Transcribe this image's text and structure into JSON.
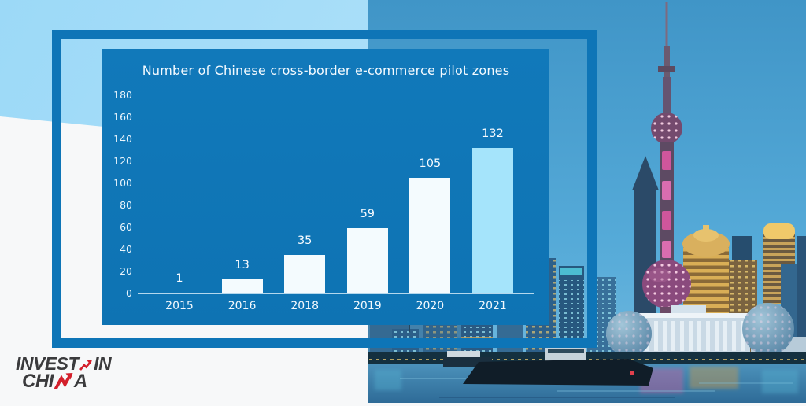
{
  "chart_data": {
    "type": "bar",
    "title": "Number of Chinese cross-border e-commerce pilot zones",
    "categories": [
      "2015",
      "2016",
      "2018",
      "2019",
      "2020",
      "2021"
    ],
    "values": [
      1,
      13,
      35,
      59,
      105,
      132
    ],
    "xlabel": "",
    "ylabel": "",
    "ylim": [
      0,
      180
    ],
    "yticks": [
      0,
      20,
      40,
      60,
      80,
      100,
      120,
      140,
      160,
      180
    ],
    "grid": false,
    "legend": null,
    "data_labels_shown": true,
    "highlight_category": "2021",
    "bar_color_default": "#f4fbfe",
    "bar_color_highlight": "#a5e4fb"
  },
  "logo": {
    "line1_invest": "INVEST",
    "line1_in": "IN",
    "line2_chi": "CHI",
    "line2_a": "A",
    "arrow_icon": "trend-up-arrow",
    "zigzag_icon": "zigzag-n-arrow",
    "text_color": "#3b3b3d",
    "accent_red": "#d31f2b"
  },
  "colors": {
    "panel_blue": "#0f76b6",
    "frame_blue": "#0e75b7",
    "light_blue_shape": "#a3dcf8",
    "background_white": "#f7f8f9",
    "chart_text": "#ffffff"
  },
  "scene": {
    "name": "shanghai-pudong-skyline-night",
    "landmarks": [
      "oriental-pearl-tower",
      "skyscrapers",
      "colonnade-building",
      "glass-spheres",
      "huangpu-river",
      "barge-boat"
    ]
  }
}
